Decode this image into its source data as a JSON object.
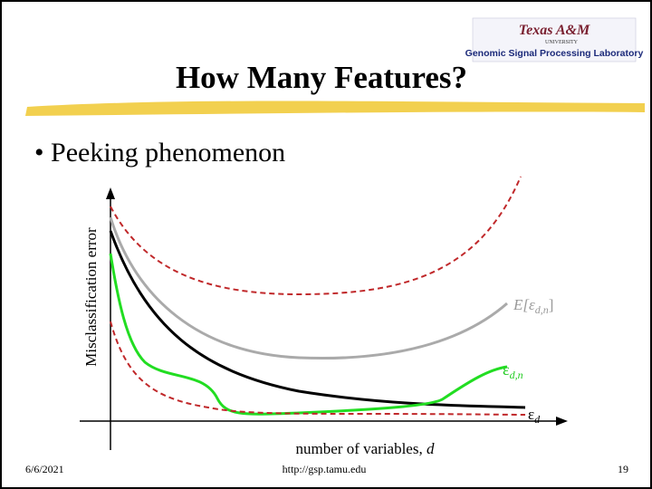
{
  "logo": {
    "name": "Texas A&M",
    "sub": "UNIVERSITY",
    "lab": "Genomic Signal Processing Laboratory"
  },
  "title": "How Many Features?",
  "bullet": "Peeking phenomenon",
  "diagram": {
    "y_label": "Misclassification error",
    "x_label": {
      "text": "number of variables, ",
      "var": "d"
    },
    "curve_labels": [
      {
        "text": "E[ε",
        "sub": "d,n",
        "end": "]"
      },
      {
        "text": "ε",
        "sub": "d,n"
      },
      {
        "text": "ε",
        "sub": "d"
      }
    ]
  },
  "footer": {
    "date": "6/6/2021",
    "url": "http://gsp.tamu.edu",
    "page": "19"
  }
}
